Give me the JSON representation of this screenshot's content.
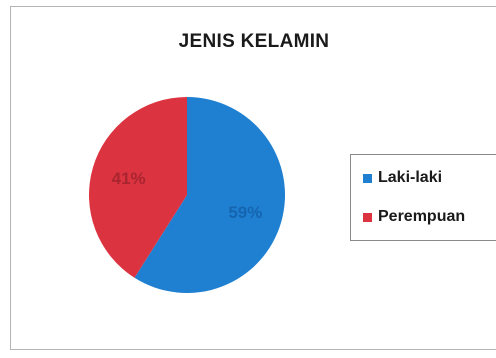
{
  "chart_data": {
    "type": "pie",
    "title": "JENIS KELAMIN",
    "slices": [
      {
        "label": "Laki-laki",
        "value": 59,
        "display": "59%",
        "color": "#1f7fd1",
        "label_color": "#1565b0"
      },
      {
        "label": "Perempuan",
        "value": 41,
        "display": "41%",
        "color": "#dc3340",
        "label_color": "#a82530"
      }
    ],
    "legend_position": "right"
  }
}
